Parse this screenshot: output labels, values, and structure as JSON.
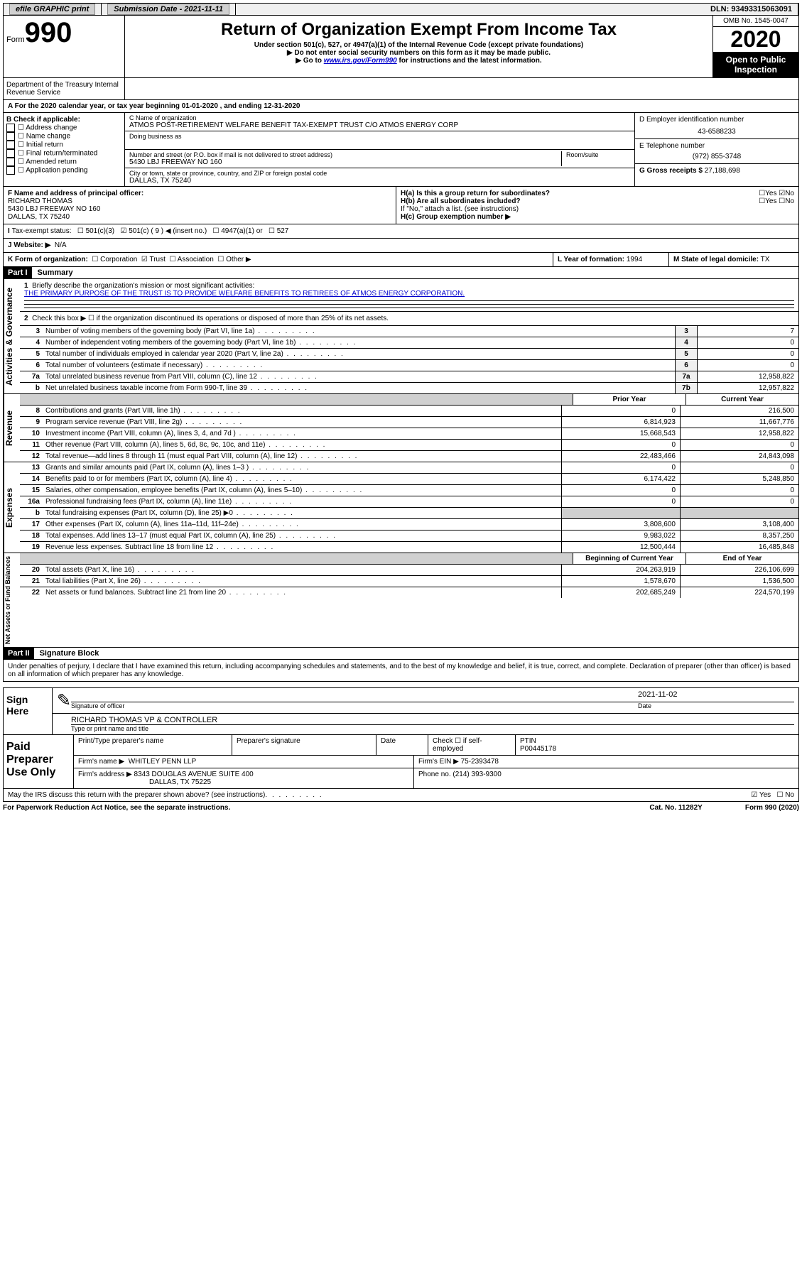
{
  "topbar": {
    "efile": "efile GRAPHIC print",
    "submission_label": "Submission Date - 2021-11-11",
    "dln": "DLN: 93493315063091"
  },
  "header": {
    "form_word": "Form",
    "form_num": "990",
    "title": "Return of Organization Exempt From Income Tax",
    "subtitle": "Under section 501(c), 527, or 4947(a)(1) of the Internal Revenue Code (except private foundations)",
    "note1": "▶ Do not enter social security numbers on this form as it may be made public.",
    "note2_a": "▶ Go to ",
    "note2_link": "www.irs.gov/Form990",
    "note2_b": " for instructions and the latest information.",
    "omb": "OMB No. 1545-0047",
    "year": "2020",
    "open": "Open to Public Inspection",
    "dept": "Department of the Treasury Internal Revenue Service"
  },
  "sectionA": "A For the 2020 calendar year, or tax year beginning 01-01-2020    , and ending 12-31-2020",
  "colB": {
    "label": "B Check if applicable:",
    "items": [
      "Address change",
      "Name change",
      "Initial return",
      "Final return/terminated",
      "Amended return",
      "Application pending"
    ]
  },
  "colC": {
    "name_label": "C Name of organization",
    "name": "ATMOS POST-RETIREMENT WELFARE BENEFIT TAX-EXEMPT TRUST C/O ATMOS ENERGY CORP",
    "dba_label": "Doing business as",
    "street_label": "Number and street (or P.O. box if mail is not delivered to street address)",
    "room_label": "Room/suite",
    "street": "5430 LBJ FREEWAY NO 160",
    "city_label": "City or town, state or province, country, and ZIP or foreign postal code",
    "city": "DALLAS, TX  75240"
  },
  "colD": {
    "ein_label": "D Employer identification number",
    "ein": "43-6588233",
    "phone_label": "E Telephone number",
    "phone": "(972) 855-3748",
    "gross_label": "G Gross receipts $",
    "gross": "27,188,698"
  },
  "rowF": {
    "label": "F  Name and address of principal officer:",
    "name": "RICHARD THOMAS",
    "addr1": "5430 LBJ FREEWAY NO 160",
    "addr2": "DALLAS, TX  75240"
  },
  "rowH": {
    "a": "H(a)  Is this a group return for subordinates?",
    "b": "H(b)  Are all subordinates included?",
    "b_note": "If \"No,\" attach a list. (see instructions)",
    "c": "H(c)  Group exemption number ▶"
  },
  "rowI": {
    "label": "Tax-exempt status:",
    "opts": [
      "501(c)(3)",
      "501(c) ( 9 ) ◀ (insert no.)",
      "4947(a)(1) or",
      "527"
    ]
  },
  "rowJ": {
    "label": "J   Website: ▶",
    "val": "N/A"
  },
  "rowK": {
    "label": "K Form of organization:",
    "opts": [
      "Corporation",
      "Trust",
      "Association",
      "Other ▶"
    ],
    "l_label": "L Year of formation:",
    "l_val": "1994",
    "m_label": "M State of legal domicile:",
    "m_val": "TX"
  },
  "part1": {
    "header": "Part I",
    "title": "Summary"
  },
  "gov": {
    "label": "Activities & Governance",
    "line1_label": "Briefly describe the organization's mission or most significant activities:",
    "line1_val": "THE PRIMARY PURPOSE OF THE TRUST IS TO PROVIDE WELFARE BENEFITS TO RETIREES OF ATMOS ENERGY CORPORATION.",
    "line2": "Check this box ▶ ☐  if the organization discontinued its operations or disposed of more than 25% of its net assets.",
    "lines": [
      {
        "n": "3",
        "desc": "Number of voting members of the governing body (Part VI, line 1a)",
        "box": "3",
        "val": "7"
      },
      {
        "n": "4",
        "desc": "Number of independent voting members of the governing body (Part VI, line 1b)",
        "box": "4",
        "val": "0"
      },
      {
        "n": "5",
        "desc": "Total number of individuals employed in calendar year 2020 (Part V, line 2a)",
        "box": "5",
        "val": "0"
      },
      {
        "n": "6",
        "desc": "Total number of volunteers (estimate if necessary)",
        "box": "6",
        "val": "0"
      },
      {
        "n": "7a",
        "desc": "Total unrelated business revenue from Part VIII, column (C), line 12",
        "box": "7a",
        "val": "12,958,822"
      },
      {
        "n": "b",
        "desc": "Net unrelated business taxable income from Form 990-T, line 39",
        "box": "7b",
        "val": "12,957,822"
      }
    ]
  },
  "rev": {
    "label": "Revenue",
    "prior_h": "Prior Year",
    "curr_h": "Current Year",
    "lines": [
      {
        "n": "8",
        "desc": "Contributions and grants (Part VIII, line 1h)",
        "prior": "0",
        "curr": "216,500"
      },
      {
        "n": "9",
        "desc": "Program service revenue (Part VIII, line 2g)",
        "prior": "6,814,923",
        "curr": "11,667,776"
      },
      {
        "n": "10",
        "desc": "Investment income (Part VIII, column (A), lines 3, 4, and 7d )",
        "prior": "15,668,543",
        "curr": "12,958,822"
      },
      {
        "n": "11",
        "desc": "Other revenue (Part VIII, column (A), lines 5, 6d, 8c, 9c, 10c, and 11e)",
        "prior": "0",
        "curr": "0"
      },
      {
        "n": "12",
        "desc": "Total revenue—add lines 8 through 11 (must equal Part VIII, column (A), line 12)",
        "prior": "22,483,466",
        "curr": "24,843,098"
      }
    ]
  },
  "exp": {
    "label": "Expenses",
    "lines": [
      {
        "n": "13",
        "desc": "Grants and similar amounts paid (Part IX, column (A), lines 1–3 )",
        "prior": "0",
        "curr": "0"
      },
      {
        "n": "14",
        "desc": "Benefits paid to or for members (Part IX, column (A), line 4)",
        "prior": "6,174,422",
        "curr": "5,248,850"
      },
      {
        "n": "15",
        "desc": "Salaries, other compensation, employee benefits (Part IX, column (A), lines 5–10)",
        "prior": "0",
        "curr": "0"
      },
      {
        "n": "16a",
        "desc": "Professional fundraising fees (Part IX, column (A), line 11e)",
        "prior": "0",
        "curr": "0"
      },
      {
        "n": "b",
        "desc": "Total fundraising expenses (Part IX, column (D), line 25) ▶0",
        "prior": "",
        "curr": "",
        "shaded": true
      },
      {
        "n": "17",
        "desc": "Other expenses (Part IX, column (A), lines 11a–11d, 11f–24e)",
        "prior": "3,808,600",
        "curr": "3,108,400"
      },
      {
        "n": "18",
        "desc": "Total expenses. Add lines 13–17 (must equal Part IX, column (A), line 25)",
        "prior": "9,983,022",
        "curr": "8,357,250"
      },
      {
        "n": "19",
        "desc": "Revenue less expenses. Subtract line 18 from line 12",
        "prior": "12,500,444",
        "curr": "16,485,848"
      }
    ]
  },
  "net": {
    "label": "Net Assets or Fund Balances",
    "prior_h": "Beginning of Current Year",
    "curr_h": "End of Year",
    "lines": [
      {
        "n": "20",
        "desc": "Total assets (Part X, line 16)",
        "prior": "204,263,919",
        "curr": "226,106,699"
      },
      {
        "n": "21",
        "desc": "Total liabilities (Part X, line 26)",
        "prior": "1,578,670",
        "curr": "1,536,500"
      },
      {
        "n": "22",
        "desc": "Net assets or fund balances. Subtract line 21 from line 20",
        "prior": "202,685,249",
        "curr": "224,570,199"
      }
    ]
  },
  "part2": {
    "header": "Part II",
    "title": "Signature Block",
    "decl": "Under penalties of perjury, I declare that I have examined this return, including accompanying schedules and statements, and to the best of my knowledge and belief, it is true, correct, and complete. Declaration of preparer (other than officer) is based on all information of which preparer has any knowledge."
  },
  "sign": {
    "label": "Sign Here",
    "sig_label": "Signature of officer",
    "date": "2021-11-02",
    "date_label": "Date",
    "name": "RICHARD THOMAS  VP & CONTROLLER",
    "name_label": "Type or print name and title"
  },
  "paid": {
    "label": "Paid Preparer Use Only",
    "col1": "Print/Type preparer's name",
    "col2": "Preparer's signature",
    "col3": "Date",
    "col4": "Check ☐ if self-employed",
    "ptin_label": "PTIN",
    "ptin": "P00445178",
    "firm_label": "Firm's name      ▶",
    "firm": "WHITLEY PENN LLP",
    "ein_label": "Firm's EIN ▶",
    "ein": "75-2393478",
    "addr_label": "Firm's address ▶",
    "addr1": "8343 DOUGLAS AVENUE SUITE 400",
    "addr2": "DALLAS, TX  75225",
    "phone_label": "Phone no.",
    "phone": "(214) 393-9300"
  },
  "footer": {
    "discuss": "May the IRS discuss this return with the preparer shown above? (see instructions)",
    "paperwork": "For Paperwork Reduction Act Notice, see the separate instructions.",
    "cat": "Cat. No. 11282Y",
    "form": "Form 990 (2020)"
  }
}
